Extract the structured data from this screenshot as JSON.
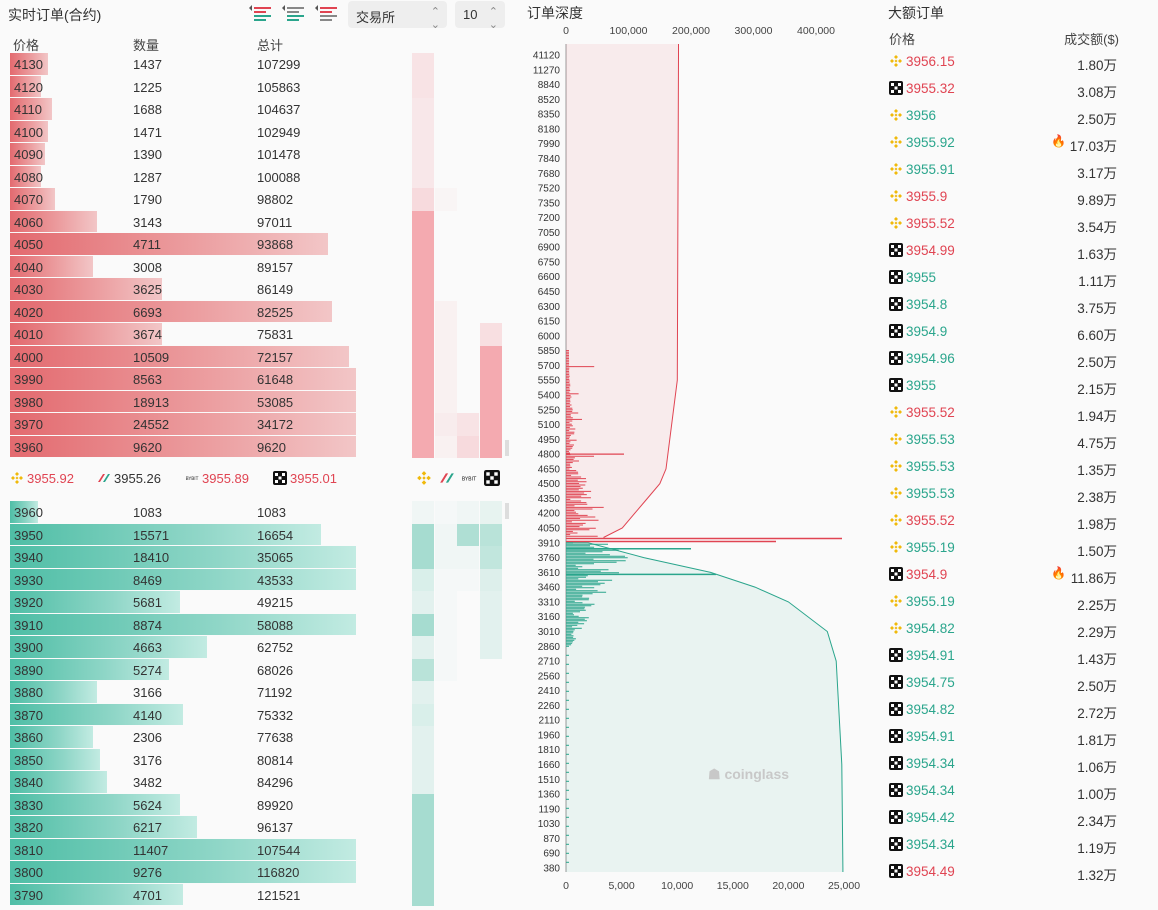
{
  "order_book": {
    "title": "实时订单(合约)",
    "exchange_select": "交易所",
    "depth_select": "10",
    "headers": {
      "price": "价格",
      "qty": "数量",
      "total": "总计"
    },
    "asks": [
      {
        "price": "4130",
        "qty": "1437",
        "total": "107299",
        "fill": 0.11
      },
      {
        "price": "4120",
        "qty": "1225",
        "total": "105863",
        "fill": 0.09
      },
      {
        "price": "4110",
        "qty": "1688",
        "total": "104637",
        "fill": 0.12
      },
      {
        "price": "4100",
        "qty": "1471",
        "total": "102949",
        "fill": 0.11
      },
      {
        "price": "4090",
        "qty": "1390",
        "total": "101478",
        "fill": 0.1
      },
      {
        "price": "4080",
        "qty": "1287",
        "total": "100088",
        "fill": 0.09
      },
      {
        "price": "4070",
        "qty": "1790",
        "total": "98802",
        "fill": 0.13
      },
      {
        "price": "4060",
        "qty": "3143",
        "total": "97011",
        "fill": 0.25
      },
      {
        "price": "4050",
        "qty": "4711",
        "total": "93868",
        "fill": 0.92
      },
      {
        "price": "4040",
        "qty": "3008",
        "total": "89157",
        "fill": 0.24
      },
      {
        "price": "4030",
        "qty": "3625",
        "total": "86149",
        "fill": 0.44
      },
      {
        "price": "4020",
        "qty": "6693",
        "total": "82525",
        "fill": 0.93
      },
      {
        "price": "4010",
        "qty": "3674",
        "total": "75831",
        "fill": 0.44
      },
      {
        "price": "4000",
        "qty": "10509",
        "total": "72157",
        "fill": 0.98
      },
      {
        "price": "3990",
        "qty": "8563",
        "total": "61648",
        "fill": 1.0
      },
      {
        "price": "3980",
        "qty": "18913",
        "total": "53085",
        "fill": 1.0
      },
      {
        "price": "3970",
        "qty": "24552",
        "total": "34172",
        "fill": 1.0
      },
      {
        "price": "3960",
        "qty": "9620",
        "total": "9620",
        "fill": 1.0
      }
    ],
    "bids": [
      {
        "price": "3960",
        "qty": "1083",
        "total": "1083",
        "fill": 0.08
      },
      {
        "price": "3950",
        "qty": "15571",
        "total": "16654",
        "fill": 0.9
      },
      {
        "price": "3940",
        "qty": "18410",
        "total": "35065",
        "fill": 1.0
      },
      {
        "price": "3930",
        "qty": "8469",
        "total": "43533",
        "fill": 1.0
      },
      {
        "price": "3920",
        "qty": "5681",
        "total": "49215",
        "fill": 0.49
      },
      {
        "price": "3910",
        "qty": "8874",
        "total": "58088",
        "fill": 1.0
      },
      {
        "price": "3900",
        "qty": "4663",
        "total": "62752",
        "fill": 0.57
      },
      {
        "price": "3890",
        "qty": "5274",
        "total": "68026",
        "fill": 0.46
      },
      {
        "price": "3880",
        "qty": "3166",
        "total": "71192",
        "fill": 0.25
      },
      {
        "price": "3870",
        "qty": "4140",
        "total": "75332",
        "fill": 0.5
      },
      {
        "price": "3860",
        "qty": "2306",
        "total": "77638",
        "fill": 0.24
      },
      {
        "price": "3850",
        "qty": "3176",
        "total": "80814",
        "fill": 0.26
      },
      {
        "price": "3840",
        "qty": "3482",
        "total": "84296",
        "fill": 0.28
      },
      {
        "price": "3830",
        "qty": "5624",
        "total": "89920",
        "fill": 0.49
      },
      {
        "price": "3820",
        "qty": "6217",
        "total": "96137",
        "fill": 0.54
      },
      {
        "price": "3810",
        "qty": "11407",
        "total": "107544",
        "fill": 1.0
      },
      {
        "price": "3800",
        "qty": "9276",
        "total": "116820",
        "fill": 1.0
      },
      {
        "price": "3790",
        "qty": "4701",
        "total": "121521",
        "fill": 0.5
      }
    ],
    "mid_prices": [
      {
        "exchange_icon": "binance-icon",
        "price": "3955.92",
        "color": "#e04452"
      },
      {
        "exchange_icon": "bitmex-icon",
        "price": "3955.26",
        "color": "#333333"
      },
      {
        "exchange_icon": "bybit-icon",
        "price": "3955.89",
        "color": "#e04452"
      },
      {
        "exchange_icon": "okx-icon",
        "price": "3955.01",
        "color": "#e04452"
      }
    ],
    "exchange_columns": [
      "binance-icon",
      "bitmex-icon",
      "bybit-icon",
      "okx-icon"
    ]
  },
  "depth_chart": {
    "title": "订单深度",
    "watermark": "coinglass",
    "colors": {
      "ask": "#e04452",
      "bid": "#2aa58c"
    }
  },
  "chart_data": {
    "type": "area",
    "title": "订单深度",
    "top_axis_ticks": [
      "0",
      "100,000",
      "200,000",
      "300,000",
      "400,000"
    ],
    "bottom_axis_ticks": [
      "0",
      "5,000",
      "10,000",
      "15,000",
      "20,000",
      "25,000"
    ],
    "price_ticks": [
      "41120",
      "11270",
      "8840",
      "8520",
      "8350",
      "8180",
      "7990",
      "7840",
      "7680",
      "7520",
      "7350",
      "7200",
      "7050",
      "6900",
      "6750",
      "6600",
      "6450",
      "6300",
      "6150",
      "6000",
      "5850",
      "5700",
      "5550",
      "5400",
      "5250",
      "5100",
      "4950",
      "4800",
      "4650",
      "4500",
      "4350",
      "4200",
      "4050",
      "3910",
      "3760",
      "3610",
      "3460",
      "3310",
      "3160",
      "3010",
      "2860",
      "2710",
      "2560",
      "2410",
      "2260",
      "2110",
      "1960",
      "1810",
      "1660",
      "1510",
      "1360",
      "1190",
      "1030",
      "870",
      "690",
      "380"
    ],
    "ask_cumulative": [
      {
        "price": 41120,
        "total": 180000
      },
      {
        "price": 5550,
        "total": 178000
      },
      {
        "price": 4650,
        "total": 160000
      },
      {
        "price": 4500,
        "total": 150000
      },
      {
        "price": 4350,
        "total": 130000
      },
      {
        "price": 4200,
        "total": 110000
      },
      {
        "price": 4050,
        "total": 90000
      },
      {
        "price": 3960,
        "total": 60000
      }
    ],
    "bid_cumulative": [
      {
        "price": 3910,
        "total": 2000
      },
      {
        "price": 3760,
        "total": 7000
      },
      {
        "price": 3610,
        "total": 13000
      },
      {
        "price": 3460,
        "total": 17000
      },
      {
        "price": 3310,
        "total": 20000
      },
      {
        "price": 3010,
        "total": 23500
      },
      {
        "price": 2710,
        "total": 24300
      },
      {
        "price": 1660,
        "total": 24800
      },
      {
        "price": 380,
        "total": 24900
      }
    ],
    "ylabel": "",
    "xlabel": ""
  },
  "large_orders": {
    "title": "大额订单",
    "headers": {
      "price": "价格",
      "amount": "成交额($)"
    },
    "rows": [
      {
        "exchange": "binance-icon",
        "price": "3956.15",
        "side": "down",
        "amount": "1.80万",
        "hot": false
      },
      {
        "exchange": "okx-icon",
        "price": "3955.32",
        "side": "down",
        "amount": "3.08万",
        "hot": false
      },
      {
        "exchange": "binance-icon",
        "price": "3956",
        "side": "up",
        "amount": "2.50万",
        "hot": false
      },
      {
        "exchange": "binance-icon",
        "price": "3955.92",
        "side": "up",
        "amount": "17.03万",
        "hot": true
      },
      {
        "exchange": "binance-icon",
        "price": "3955.91",
        "side": "up",
        "amount": "3.17万",
        "hot": false
      },
      {
        "exchange": "binance-icon",
        "price": "3955.9",
        "side": "down",
        "amount": "9.89万",
        "hot": false
      },
      {
        "exchange": "binance-icon",
        "price": "3955.52",
        "side": "down",
        "amount": "3.54万",
        "hot": false
      },
      {
        "exchange": "okx-icon",
        "price": "3954.99",
        "side": "down",
        "amount": "1.63万",
        "hot": false
      },
      {
        "exchange": "okx-icon",
        "price": "3955",
        "side": "up",
        "amount": "1.11万",
        "hot": false
      },
      {
        "exchange": "okx-icon",
        "price": "3954.8",
        "side": "up",
        "amount": "3.75万",
        "hot": false
      },
      {
        "exchange": "okx-icon",
        "price": "3954.9",
        "side": "up",
        "amount": "6.60万",
        "hot": false
      },
      {
        "exchange": "okx-icon",
        "price": "3954.96",
        "side": "up",
        "amount": "2.50万",
        "hot": false
      },
      {
        "exchange": "okx-icon",
        "price": "3955",
        "side": "up",
        "amount": "2.15万",
        "hot": false
      },
      {
        "exchange": "binance-icon",
        "price": "3955.52",
        "side": "down",
        "amount": "1.94万",
        "hot": false
      },
      {
        "exchange": "binance-icon",
        "price": "3955.53",
        "side": "up",
        "amount": "4.75万",
        "hot": false
      },
      {
        "exchange": "binance-icon",
        "price": "3955.53",
        "side": "up",
        "amount": "1.35万",
        "hot": false
      },
      {
        "exchange": "binance-icon",
        "price": "3955.53",
        "side": "up",
        "amount": "2.38万",
        "hot": false
      },
      {
        "exchange": "binance-icon",
        "price": "3955.52",
        "side": "down",
        "amount": "1.98万",
        "hot": false
      },
      {
        "exchange": "binance-icon",
        "price": "3955.19",
        "side": "up",
        "amount": "1.50万",
        "hot": false
      },
      {
        "exchange": "okx-icon",
        "price": "3954.9",
        "side": "down",
        "amount": "11.86万",
        "hot": true
      },
      {
        "exchange": "binance-icon",
        "price": "3955.19",
        "side": "up",
        "amount": "2.25万",
        "hot": false
      },
      {
        "exchange": "binance-icon",
        "price": "3954.82",
        "side": "up",
        "amount": "2.29万",
        "hot": false
      },
      {
        "exchange": "okx-icon",
        "price": "3954.91",
        "side": "up",
        "amount": "1.43万",
        "hot": false
      },
      {
        "exchange": "okx-icon",
        "price": "3954.75",
        "side": "up",
        "amount": "2.50万",
        "hot": false
      },
      {
        "exchange": "okx-icon",
        "price": "3954.82",
        "side": "up",
        "amount": "2.72万",
        "hot": false
      },
      {
        "exchange": "okx-icon",
        "price": "3954.91",
        "side": "up",
        "amount": "1.81万",
        "hot": false
      },
      {
        "exchange": "okx-icon",
        "price": "3954.34",
        "side": "up",
        "amount": "1.06万",
        "hot": false
      },
      {
        "exchange": "okx-icon",
        "price": "3954.34",
        "side": "up",
        "amount": "1.00万",
        "hot": false
      },
      {
        "exchange": "okx-icon",
        "price": "3954.42",
        "side": "up",
        "amount": "2.34万",
        "hot": false
      },
      {
        "exchange": "okx-icon",
        "price": "3954.34",
        "side": "up",
        "amount": "1.19万",
        "hot": false
      },
      {
        "exchange": "okx-icon",
        "price": "3954.49",
        "side": "down",
        "amount": "1.32万",
        "hot": false
      }
    ]
  }
}
